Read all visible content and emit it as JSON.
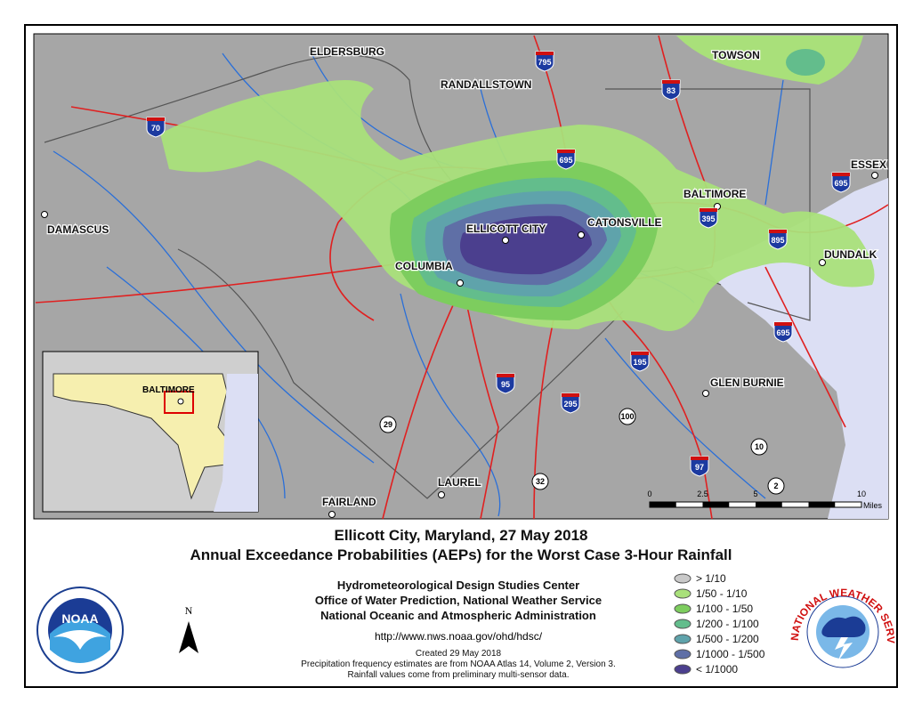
{
  "map": {
    "places": [
      "ELDERSBURG",
      "TOWSON",
      "RANDALLSTOWN",
      "ESSEX",
      "BALTIMORE",
      "DAMASCUS",
      "ELLICOTT CITY",
      "CATONSVILLE",
      "COLUMBIA",
      "DUNDALK",
      "GLEN BURNIE",
      "FAIRLAND",
      "LAUREL"
    ],
    "highways": [
      "795",
      "83",
      "70",
      "695",
      "695",
      "395",
      "895",
      "695",
      "95",
      "195",
      "295",
      "29",
      "100",
      "10",
      "97",
      "32",
      "2"
    ],
    "inset_label": "BALTIMORE",
    "scale": {
      "ticks": [
        0,
        2.5,
        5,
        10
      ],
      "unit": "Miles"
    }
  },
  "title": [
    "Ellicott City, Maryland, 27 May 2018",
    "Annual Exceedance Probabilities (AEPs) for the Worst Case 3-Hour Rainfall"
  ],
  "agency": [
    "Hydrometeorological Design Studies Center",
    "Office of Water Prediction, National Weather Service",
    "National Oceanic and Atmospheric Administration"
  ],
  "url": "http://www.nws.noaa.gov/ohd/hdsc/",
  "created": "Created 29 May 2018",
  "notes": [
    "Precipitation frequency estimates are from NOAA Atlas 14, Volume 2, Version 3.",
    "Rainfall values come from preliminary multi-sensor data."
  ],
  "legend": [
    {
      "label": "> 1/10",
      "color": "#c9c9c9"
    },
    {
      "label": "1/50 - 1/10",
      "color": "#a9e07a"
    },
    {
      "label": "1/100 - 1/50",
      "color": "#7dcd5e"
    },
    {
      "label": "1/200 - 1/100",
      "color": "#63bd8c"
    },
    {
      "label": "1/500 - 1/200",
      "color": "#5fa3ab"
    },
    {
      "label": "1/1000 - 1/500",
      "color": "#5f6fa6"
    },
    {
      "label": "< 1/1000",
      "color": "#4b3f8e"
    }
  ],
  "north": "N",
  "logos": {
    "noaa": "NOAA",
    "nws": "NATIONAL WEATHER SERVICE"
  }
}
